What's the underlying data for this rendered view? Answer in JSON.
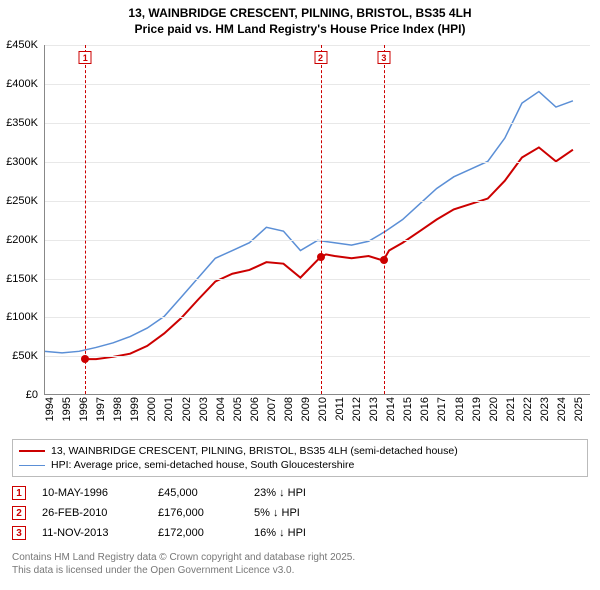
{
  "title_line1": "13, WAINBRIDGE CRESCENT, PILNING, BRISTOL, BS35 4LH",
  "title_line2": "Price paid vs. HM Land Registry's House Price Index (HPI)",
  "chart": {
    "type": "line",
    "x_domain": [
      1994,
      2026
    ],
    "y_domain": [
      0,
      450000
    ],
    "y_ticks": [
      0,
      50000,
      100000,
      150000,
      200000,
      250000,
      300000,
      350000,
      400000,
      450000
    ],
    "y_tick_labels": [
      "£0",
      "£50K",
      "£100K",
      "£150K",
      "£200K",
      "£250K",
      "£300K",
      "£350K",
      "£400K",
      "£450K"
    ],
    "x_ticks": [
      1994,
      1995,
      1996,
      1997,
      1998,
      1999,
      2000,
      2001,
      2002,
      2003,
      2004,
      2005,
      2006,
      2007,
      2008,
      2009,
      2010,
      2011,
      2012,
      2013,
      2014,
      2015,
      2016,
      2017,
      2018,
      2019,
      2020,
      2021,
      2022,
      2023,
      2024,
      2025
    ],
    "grid_color": "#e8e8e8",
    "background_color": "#ffffff",
    "series": [
      {
        "id": "price_paid",
        "color": "#cc0000",
        "width": 2,
        "data": [
          [
            1996.36,
            45000
          ],
          [
            1997,
            45000
          ],
          [
            1998,
            48000
          ],
          [
            1999,
            52000
          ],
          [
            2000,
            62000
          ],
          [
            2001,
            78000
          ],
          [
            2002,
            98000
          ],
          [
            2003,
            122000
          ],
          [
            2004,
            145000
          ],
          [
            2005,
            155000
          ],
          [
            2006,
            160000
          ],
          [
            2007,
            170000
          ],
          [
            2008,
            168000
          ],
          [
            2009,
            150000
          ],
          [
            2010.15,
            176000
          ],
          [
            2010.5,
            180000
          ],
          [
            2011,
            178000
          ],
          [
            2012,
            175000
          ],
          [
            2013,
            178000
          ],
          [
            2013.86,
            172000
          ],
          [
            2014.2,
            185000
          ],
          [
            2015,
            195000
          ],
          [
            2016,
            210000
          ],
          [
            2017,
            225000
          ],
          [
            2018,
            238000
          ],
          [
            2019,
            245000
          ],
          [
            2020,
            252000
          ],
          [
            2021,
            275000
          ],
          [
            2022,
            305000
          ],
          [
            2023,
            318000
          ],
          [
            2024,
            300000
          ],
          [
            2025,
            315000
          ]
        ]
      },
      {
        "id": "hpi",
        "color": "#5b8fd6",
        "width": 1.5,
        "data": [
          [
            1994,
            55000
          ],
          [
            1995,
            53000
          ],
          [
            1996,
            55000
          ],
          [
            1997,
            60000
          ],
          [
            1998,
            66000
          ],
          [
            1999,
            74000
          ],
          [
            2000,
            85000
          ],
          [
            2001,
            100000
          ],
          [
            2002,
            125000
          ],
          [
            2003,
            150000
          ],
          [
            2004,
            175000
          ],
          [
            2005,
            185000
          ],
          [
            2006,
            195000
          ],
          [
            2007,
            215000
          ],
          [
            2008,
            210000
          ],
          [
            2009,
            185000
          ],
          [
            2010,
            198000
          ],
          [
            2011,
            195000
          ],
          [
            2012,
            192000
          ],
          [
            2013,
            197000
          ],
          [
            2014,
            210000
          ],
          [
            2015,
            225000
          ],
          [
            2016,
            245000
          ],
          [
            2017,
            265000
          ],
          [
            2018,
            280000
          ],
          [
            2019,
            290000
          ],
          [
            2020,
            300000
          ],
          [
            2021,
            330000
          ],
          [
            2022,
            375000
          ],
          [
            2023,
            390000
          ],
          [
            2024,
            370000
          ],
          [
            2025,
            378000
          ]
        ]
      }
    ],
    "sale_points": [
      {
        "x": 1996.36,
        "y": 45000,
        "color": "#cc0000",
        "radius": 4
      },
      {
        "x": 2010.15,
        "y": 176000,
        "color": "#cc0000",
        "radius": 4
      },
      {
        "x": 2013.86,
        "y": 172000,
        "color": "#cc0000",
        "radius": 4
      }
    ],
    "markers": [
      {
        "n": "1",
        "x": 1996.36,
        "color": "#cc0000"
      },
      {
        "n": "2",
        "x": 2010.15,
        "color": "#cc0000"
      },
      {
        "n": "3",
        "x": 2013.86,
        "color": "#cc0000"
      }
    ]
  },
  "legend": {
    "rows": [
      {
        "color": "#cc0000",
        "width": 2,
        "label": "13, WAINBRIDGE CRESCENT, PILNING, BRISTOL, BS35 4LH (semi-detached house)"
      },
      {
        "color": "#5b8fd6",
        "width": 1.5,
        "label": "HPI: Average price, semi-detached house, South Gloucestershire"
      }
    ]
  },
  "events": [
    {
      "n": "1",
      "color": "#cc0000",
      "date": "10-MAY-1996",
      "price": "£45,000",
      "diff": "23% ↓ HPI"
    },
    {
      "n": "2",
      "color": "#cc0000",
      "date": "26-FEB-2010",
      "price": "£176,000",
      "diff": "5% ↓ HPI"
    },
    {
      "n": "3",
      "color": "#cc0000",
      "date": "11-NOV-2013",
      "price": "£172,000",
      "diff": "16% ↓ HPI"
    }
  ],
  "footer_line1": "Contains HM Land Registry data © Crown copyright and database right 2025.",
  "footer_line2": "This data is licensed under the Open Government Licence v3.0."
}
